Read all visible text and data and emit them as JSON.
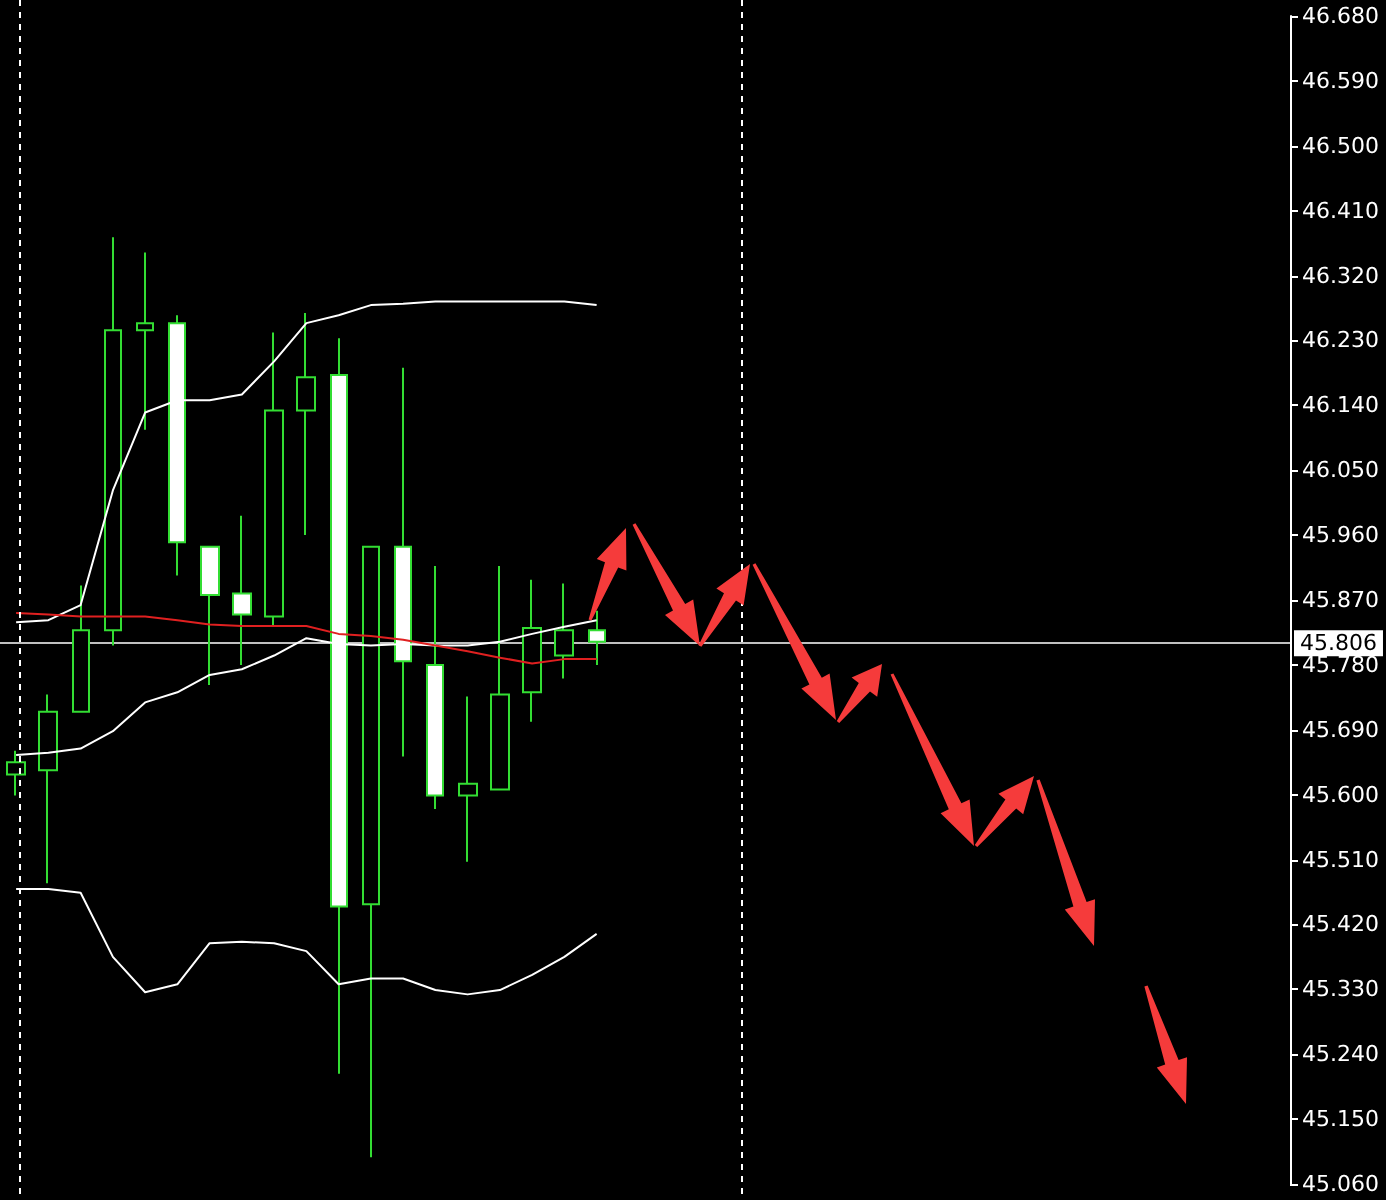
{
  "chart_data": {
    "type": "candlestick",
    "categories": [
      null,
      null,
      null,
      null,
      null,
      null,
      null,
      null,
      null,
      null,
      null,
      null,
      null,
      null,
      null,
      null,
      null,
      null,
      null,
      null,
      null,
      null,
      null,
      null,
      null,
      null,
      null,
      null,
      null,
      null,
      null,
      null,
      null,
      null,
      null,
      null,
      null,
      null,
      null,
      null
    ],
    "ohlc": [
      [
        45.628,
        45.661,
        45.599,
        45.645
      ],
      [
        45.634,
        45.739,
        45.477,
        45.715
      ],
      [
        45.715,
        45.89,
        45.715,
        45.828
      ],
      [
        45.828,
        46.373,
        45.807,
        46.244
      ],
      [
        46.244,
        46.352,
        46.106,
        46.254
      ],
      [
        46.254,
        46.265,
        45.904,
        45.95
      ],
      [
        45.944,
        45.944,
        45.752,
        45.877
      ],
      [
        45.879,
        45.987,
        45.78,
        45.85
      ],
      [
        45.847,
        46.241,
        45.834,
        46.133
      ],
      [
        46.133,
        46.268,
        45.96,
        46.179
      ],
      [
        46.182,
        46.233,
        45.213,
        45.445
      ],
      [
        45.448,
        45.944,
        45.097,
        45.944
      ],
      [
        45.944,
        46.192,
        45.653,
        45.785
      ],
      [
        45.78,
        45.917,
        45.58,
        45.599
      ],
      [
        45.599,
        45.736,
        45.507,
        45.615
      ],
      [
        45.607,
        45.917,
        45.607,
        45.739
      ],
      [
        45.742,
        45.898,
        45.701,
        45.831
      ],
      [
        45.793,
        45.893,
        45.761,
        45.828
      ],
      [
        45.828,
        45.855,
        45.78,
        45.812
      ],
      null,
      null,
      null,
      null,
      null,
      null,
      null,
      null,
      null,
      null,
      null,
      null,
      null,
      null,
      null,
      null,
      null,
      null,
      null,
      null,
      null
    ],
    "color": "#33dd33",
    "colors": [
      "#000000",
      "#000000",
      "#000000",
      "#000000",
      "#000000",
      "#ffffff",
      "#ffffff",
      "#ffffff",
      "#000000",
      "#000000",
      "#ffffff",
      "#000000",
      "#ffffff",
      "#ffffff",
      "#000000",
      "#000000",
      "#000000",
      "#000000",
      "#ffffff",
      null,
      null,
      null,
      null,
      null,
      null,
      null,
      null,
      null,
      null,
      null,
      null,
      null,
      null,
      null,
      null,
      null,
      null,
      null,
      null,
      null
    ],
    "series": [
      {
        "type": "line",
        "color": "#ffffff",
        "values": [
          45.839,
          45.842,
          45.863,
          46.022,
          46.13,
          46.147,
          46.147,
          46.155,
          46.201,
          46.254,
          46.265,
          46.279,
          46.281,
          46.284,
          46.284,
          46.284,
          46.284,
          46.284,
          46.279,
          null,
          null,
          null,
          null,
          null,
          null,
          null,
          null,
          null,
          null,
          null,
          null,
          null,
          null,
          null,
          null,
          null,
          null,
          null,
          null,
          null
        ]
      },
      {
        "type": "line",
        "color": "#ffffff",
        "values": [
          45.655,
          45.658,
          45.664,
          45.688,
          45.728,
          45.742,
          45.766,
          45.774,
          45.793,
          45.817,
          45.809,
          45.807,
          45.809,
          45.807,
          45.807,
          45.812,
          45.823,
          45.833,
          45.842,
          null,
          null,
          null,
          null,
          null,
          null,
          null,
          null,
          null,
          null,
          null,
          null,
          null,
          null,
          null,
          null,
          null,
          null,
          null,
          null,
          null
        ]
      },
      {
        "type": "line",
        "color": "#ffffff",
        "values": [
          45.469,
          45.469,
          45.464,
          45.375,
          45.326,
          45.337,
          45.394,
          45.396,
          45.394,
          45.383,
          45.337,
          45.345,
          45.345,
          45.329,
          45.323,
          45.329,
          45.35,
          45.375,
          45.407,
          null,
          null,
          null,
          null,
          null,
          null,
          null,
          null,
          null,
          null,
          null,
          null,
          null,
          null,
          null,
          null,
          null,
          null,
          null,
          null,
          null
        ]
      },
      {
        "type": "line",
        "color": "#e02020",
        "values": [
          45.852,
          45.85,
          45.847,
          45.847,
          45.847,
          45.842,
          45.836,
          45.834,
          45.834,
          45.834,
          45.823,
          45.82,
          45.815,
          45.807,
          45.799,
          45.79,
          45.782,
          45.788,
          45.788,
          null,
          null,
          null,
          null,
          null,
          null,
          null,
          null,
          null,
          null,
          null,
          null,
          null,
          null,
          null,
          null,
          null,
          null,
          null,
          null,
          null
        ]
      }
    ],
    "ylim": [
      45.06,
      46.68
    ],
    "yticks": [
      {
        "value": 45.06,
        "label": "45.060"
      },
      {
        "value": 45.15,
        "label": "45.150"
      },
      {
        "value": 45.24,
        "label": "45.240"
      },
      {
        "value": 45.33,
        "label": "45.330"
      },
      {
        "value": 45.42,
        "label": "45.420"
      },
      {
        "value": 45.51,
        "label": "45.510"
      },
      {
        "value": 45.6,
        "label": "45.600"
      },
      {
        "value": 45.69,
        "label": "45.690"
      },
      {
        "value": 45.78,
        "label": "45.780"
      },
      {
        "value": 45.87,
        "label": "45.870"
      },
      {
        "value": 45.96,
        "label": "45.960"
      },
      {
        "value": 46.05,
        "label": "46.050"
      },
      {
        "value": 46.14,
        "label": "46.140"
      },
      {
        "value": 46.23,
        "label": "46.230"
      },
      {
        "value": 46.32,
        "label": "46.320"
      },
      {
        "value": 46.41,
        "label": "46.410"
      },
      {
        "value": 46.5,
        "label": "46.500"
      },
      {
        "value": 46.59,
        "label": "46.590"
      },
      {
        "value": 46.68,
        "label": "46.680"
      }
    ],
    "ref_lines": [
      {
        "axis": "y",
        "value": 45.806,
        "label": "45.806",
        "color": "#c0c0c0"
      }
    ],
    "tick_labels": "y",
    "grid": false,
    "marker": "none"
  }
}
